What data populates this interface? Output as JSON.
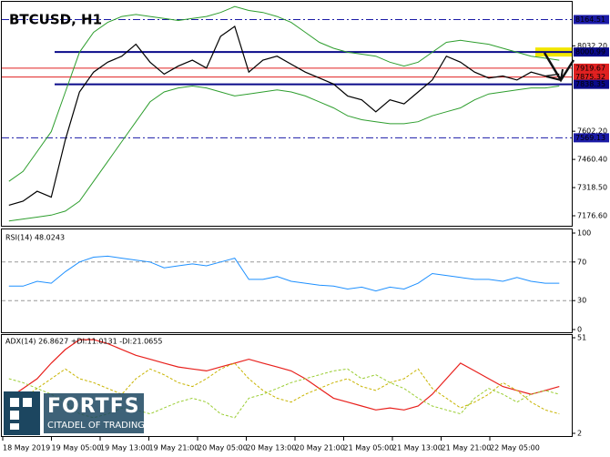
{
  "chart_data": [
    {
      "type": "line",
      "title": "BTCUSD, H1",
      "ylim": [
        7140,
        8240
      ],
      "yticks": [
        {
          "value": 8032.2,
          "label": "8032.20"
        },
        {
          "value": 7602.2,
          "label": "7602.20"
        },
        {
          "value": 7460.4,
          "label": "7460.40"
        },
        {
          "value": 7318.5,
          "label": "7318.50"
        },
        {
          "value": 7176.6,
          "label": "7176.60"
        }
      ],
      "levels": [
        {
          "value": 8164.51,
          "color": "#1a1aa6",
          "style": "dashdot"
        },
        {
          "value": 8000.99,
          "color": "#0a0a8a",
          "style": "solid",
          "highlight": "#f2e600"
        },
        {
          "value": 7919.67,
          "color": "#e02020",
          "style": "thin"
        },
        {
          "value": 7875.32,
          "color": "#e02020",
          "style": "thin"
        },
        {
          "value": 7838.35,
          "color": "#0a0a8a",
          "style": "solid"
        },
        {
          "value": 7569.13,
          "color": "#1a1aa6",
          "style": "dashdot"
        }
      ],
      "series": [
        {
          "color": "#000000",
          "values": [
            7230,
            7250,
            7300,
            7270,
            7560,
            7800,
            7900,
            7950,
            7980,
            8040,
            7950,
            7890,
            7930,
            7960,
            7920,
            8080,
            8130,
            7900,
            7960,
            7980,
            7940,
            7900,
            7870,
            7840,
            7780,
            7760,
            7700,
            7760,
            7740,
            7800,
            7860,
            7980,
            7950,
            7900,
            7870,
            7880,
            7860,
            7900,
            7880,
            7890
          ]
        },
        {
          "color": "#2e9e2e",
          "values": [
            7350,
            7400,
            7500,
            7600,
            7800,
            8000,
            8100,
            8150,
            8180,
            8190,
            8180,
            8170,
            8160,
            8170,
            8180,
            8200,
            8230,
            8210,
            8200,
            8180,
            8150,
            8100,
            8050,
            8020,
            8000,
            7990,
            7980,
            7950,
            7930,
            7950,
            8000,
            8050,
            8060,
            8050,
            8040,
            8020,
            8000,
            7980,
            7970,
            7960
          ]
        },
        {
          "color": "#2e9e2e",
          "values": [
            7150,
            7160,
            7170,
            7180,
            7200,
            7250,
            7350,
            7450,
            7550,
            7650,
            7750,
            7800,
            7820,
            7830,
            7820,
            7800,
            7780,
            7790,
            7800,
            7810,
            7800,
            7780,
            7750,
            7720,
            7680,
            7660,
            7650,
            7640,
            7640,
            7650,
            7680,
            7700,
            7720,
            7760,
            7790,
            7800,
            7810,
            7820,
            7820,
            7830
          ]
        }
      ]
    },
    {
      "type": "line",
      "title": "RSI(14) 48.0243",
      "ylim": [
        0,
        100
      ],
      "yticks": [
        100,
        70,
        30,
        0
      ],
      "hlines": [
        70,
        30
      ],
      "series": [
        {
          "color": "#1e90ff",
          "values": [
            45,
            45,
            50,
            48,
            60,
            70,
            75,
            76,
            74,
            72,
            70,
            64,
            66,
            68,
            66,
            70,
            74,
            52,
            52,
            55,
            50,
            48,
            46,
            45,
            42,
            44,
            40,
            44,
            42,
            48,
            58,
            56,
            54,
            52,
            52,
            50,
            54,
            50,
            48,
            48
          ]
        }
      ]
    },
    {
      "type": "line",
      "title": "ADX(14) 26.8627 +DI:11.0131 -DI:21.0655",
      "ylim": [
        2,
        51
      ],
      "yticks": [
        51,
        2
      ],
      "series": [
        {
          "color": "#e8201c",
          "dash": false,
          "values": [
            20,
            25,
            30,
            38,
            45,
            50,
            50,
            48,
            45,
            42,
            40,
            38,
            36,
            35,
            34,
            36,
            38,
            40,
            38,
            36,
            34,
            30,
            25,
            20,
            18,
            16,
            14,
            15,
            14,
            16,
            22,
            30,
            38,
            34,
            30,
            26,
            24,
            22,
            24,
            26
          ]
        },
        {
          "color": "#c8b400",
          "dash": true,
          "values": [
            15,
            20,
            25,
            30,
            35,
            30,
            28,
            25,
            22,
            30,
            35,
            32,
            28,
            26,
            30,
            35,
            38,
            30,
            24,
            20,
            18,
            22,
            25,
            28,
            30,
            26,
            24,
            28,
            30,
            35,
            25,
            20,
            15,
            18,
            22,
            28,
            24,
            18,
            14,
            12
          ]
        },
        {
          "color": "#9acd32",
          "dash": true,
          "values": [
            30,
            28,
            25,
            22,
            18,
            12,
            10,
            12,
            15,
            14,
            12,
            15,
            18,
            20,
            18,
            12,
            10,
            20,
            22,
            25,
            28,
            30,
            32,
            34,
            35,
            30,
            32,
            28,
            25,
            20,
            16,
            14,
            12,
            20,
            25,
            22,
            18,
            22,
            24,
            22
          ]
        }
      ]
    }
  ],
  "time_labels": [
    "18 May 2019",
    "19 May 05:00",
    "19 May 13:00",
    "19 May 21:00",
    "20 May 05:00",
    "20 May 13:00",
    "20 May 21:00",
    "21 May 05:00",
    "21 May 13:00",
    "21 May 21:00",
    "22 May 05:00"
  ],
  "logo": {
    "name": "FORTFS",
    "tagline": "CITADEL OF TRADING"
  }
}
